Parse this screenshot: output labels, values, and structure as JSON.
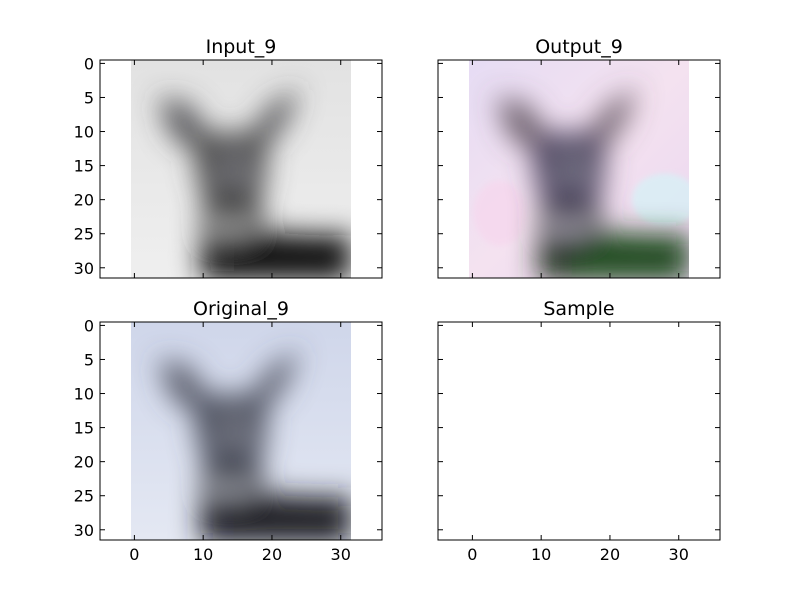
{
  "figure": {
    "panels": [
      {
        "id": "input",
        "title": "Input_9",
        "image": "grayscale deer",
        "show_image": true,
        "show_y_ticks": true,
        "show_x_ticks": false
      },
      {
        "id": "output",
        "title": "Output_9",
        "image": "colorized deer",
        "show_image": true,
        "show_y_ticks": false,
        "show_x_ticks": false
      },
      {
        "id": "original",
        "title": "Original_9",
        "image": "color deer",
        "show_image": true,
        "show_y_ticks": true,
        "show_x_ticks": true
      },
      {
        "id": "sample",
        "title": "Sample",
        "image": "",
        "show_image": false,
        "show_y_ticks": false,
        "show_x_ticks": true
      }
    ],
    "x_ticks": [
      "0",
      "10",
      "20",
      "30"
    ],
    "y_ticks": [
      "0",
      "5",
      "10",
      "15",
      "20",
      "25",
      "30"
    ]
  }
}
